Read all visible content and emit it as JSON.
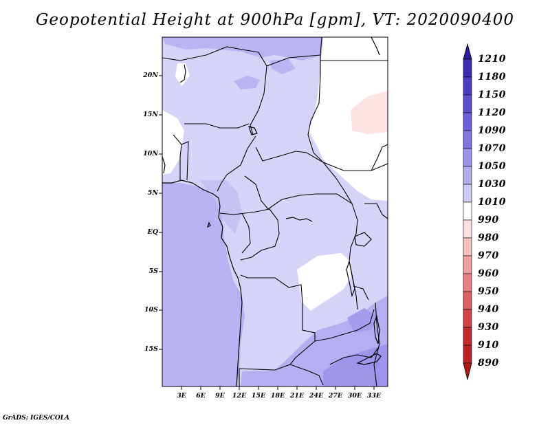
{
  "title": "Geopotential Height at 900hPa [gpm], VT: 2020090400",
  "credit": "GrADS: IGES/COLA",
  "map": {
    "lat_ticks": [
      "20N",
      "15N",
      "10N",
      "5N",
      "EQ",
      "5S",
      "10S",
      "15S"
    ],
    "lon_ticks": [
      "3E",
      "6E",
      "9E",
      "12E",
      "15E",
      "18E",
      "21E",
      "24E",
      "27E",
      "30E",
      "33E"
    ],
    "lon_range": [
      0,
      35
    ],
    "lat_range": [
      -20,
      25
    ]
  },
  "colorbar": {
    "levels": [
      "1210",
      "1180",
      "1150",
      "1120",
      "1090",
      "1070",
      "1050",
      "1030",
      "1010",
      "990",
      "980",
      "970",
      "960",
      "950",
      "940",
      "930",
      "910",
      "890"
    ],
    "colors": [
      "#2f1fa0",
      "#3b2db4",
      "#4a3ec4",
      "#5b50d1",
      "#6c63dc",
      "#8278e3",
      "#9b93ea",
      "#b3adf0",
      "#cfcdf7",
      "#ffffff",
      "#fde0e0",
      "#f8c2c2",
      "#f2a1a1",
      "#e88080",
      "#de6060",
      "#d44343",
      "#c42b2b",
      "#b41818"
    ]
  }
}
